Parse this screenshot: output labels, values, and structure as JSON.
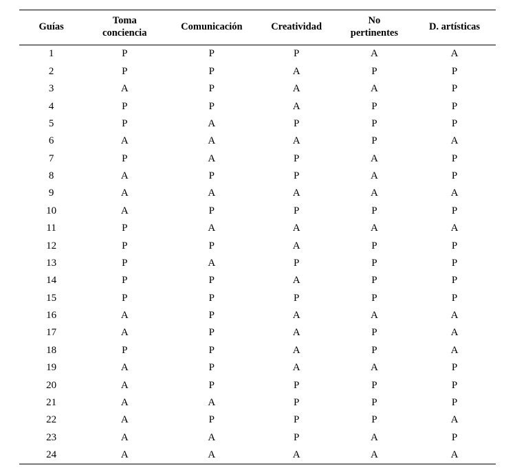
{
  "table": {
    "type": "table",
    "background_color": "#ffffff",
    "text_color": "#000000",
    "border_color": "#000000",
    "header_font_weight": "bold",
    "header_fontsize_pt": 11,
    "body_fontsize_pt": 11,
    "columns": [
      {
        "key": "guias",
        "label": "Guías",
        "width_pct": 14,
        "align": "center"
      },
      {
        "key": "toma",
        "label": "Toma\nconciencia",
        "width_pct": 18,
        "align": "center"
      },
      {
        "key": "comunicacion",
        "label": "Comunicación",
        "width_pct": 20,
        "align": "center"
      },
      {
        "key": "creatividad",
        "label": "Creatividad",
        "width_pct": 17,
        "align": "center"
      },
      {
        "key": "no_pert",
        "label": "No\npertinentes",
        "width_pct": 17,
        "align": "center"
      },
      {
        "key": "artisticas",
        "label": "D. artísticas",
        "width_pct": 18,
        "align": "center"
      }
    ],
    "rows": [
      [
        "1",
        "P",
        "P",
        "P",
        "A",
        "A"
      ],
      [
        "2",
        "P",
        "P",
        "A",
        "P",
        "P"
      ],
      [
        "3",
        "A",
        "P",
        "A",
        "A",
        "P"
      ],
      [
        "4",
        "P",
        "P",
        "A",
        "P",
        "P"
      ],
      [
        "5",
        "P",
        "A",
        "P",
        "P",
        "P"
      ],
      [
        "6",
        "A",
        "A",
        "A",
        "P",
        "A"
      ],
      [
        "7",
        "P",
        "A",
        "P",
        "A",
        "P"
      ],
      [
        "8",
        "A",
        "P",
        "P",
        "A",
        "P"
      ],
      [
        "9",
        "A",
        "A",
        "A",
        "A",
        "A"
      ],
      [
        "10",
        "A",
        "P",
        "P",
        "P",
        "P"
      ],
      [
        "11",
        "P",
        "A",
        "A",
        "A",
        "A"
      ],
      [
        "12",
        "P",
        "P",
        "A",
        "P",
        "P"
      ],
      [
        "13",
        "P",
        "A",
        "P",
        "P",
        "P"
      ],
      [
        "14",
        "P",
        "P",
        "A",
        "P",
        "P"
      ],
      [
        "15",
        "P",
        "P",
        "P",
        "P",
        "P"
      ],
      [
        "16",
        "A",
        "P",
        "A",
        "A",
        "A"
      ],
      [
        "17",
        "A",
        "P",
        "A",
        "P",
        "A"
      ],
      [
        "18",
        "P",
        "P",
        "A",
        "P",
        "A"
      ],
      [
        "19",
        "A",
        "P",
        "A",
        "A",
        "P"
      ],
      [
        "20",
        "A",
        "P",
        "P",
        "P",
        "P"
      ],
      [
        "21",
        "A",
        "A",
        "P",
        "P",
        "P"
      ],
      [
        "22",
        "A",
        "P",
        "P",
        "P",
        "A"
      ],
      [
        "23",
        "A",
        "A",
        "P",
        "A",
        "P"
      ],
      [
        "24",
        "A",
        "A",
        "A",
        "A",
        "A"
      ]
    ]
  }
}
